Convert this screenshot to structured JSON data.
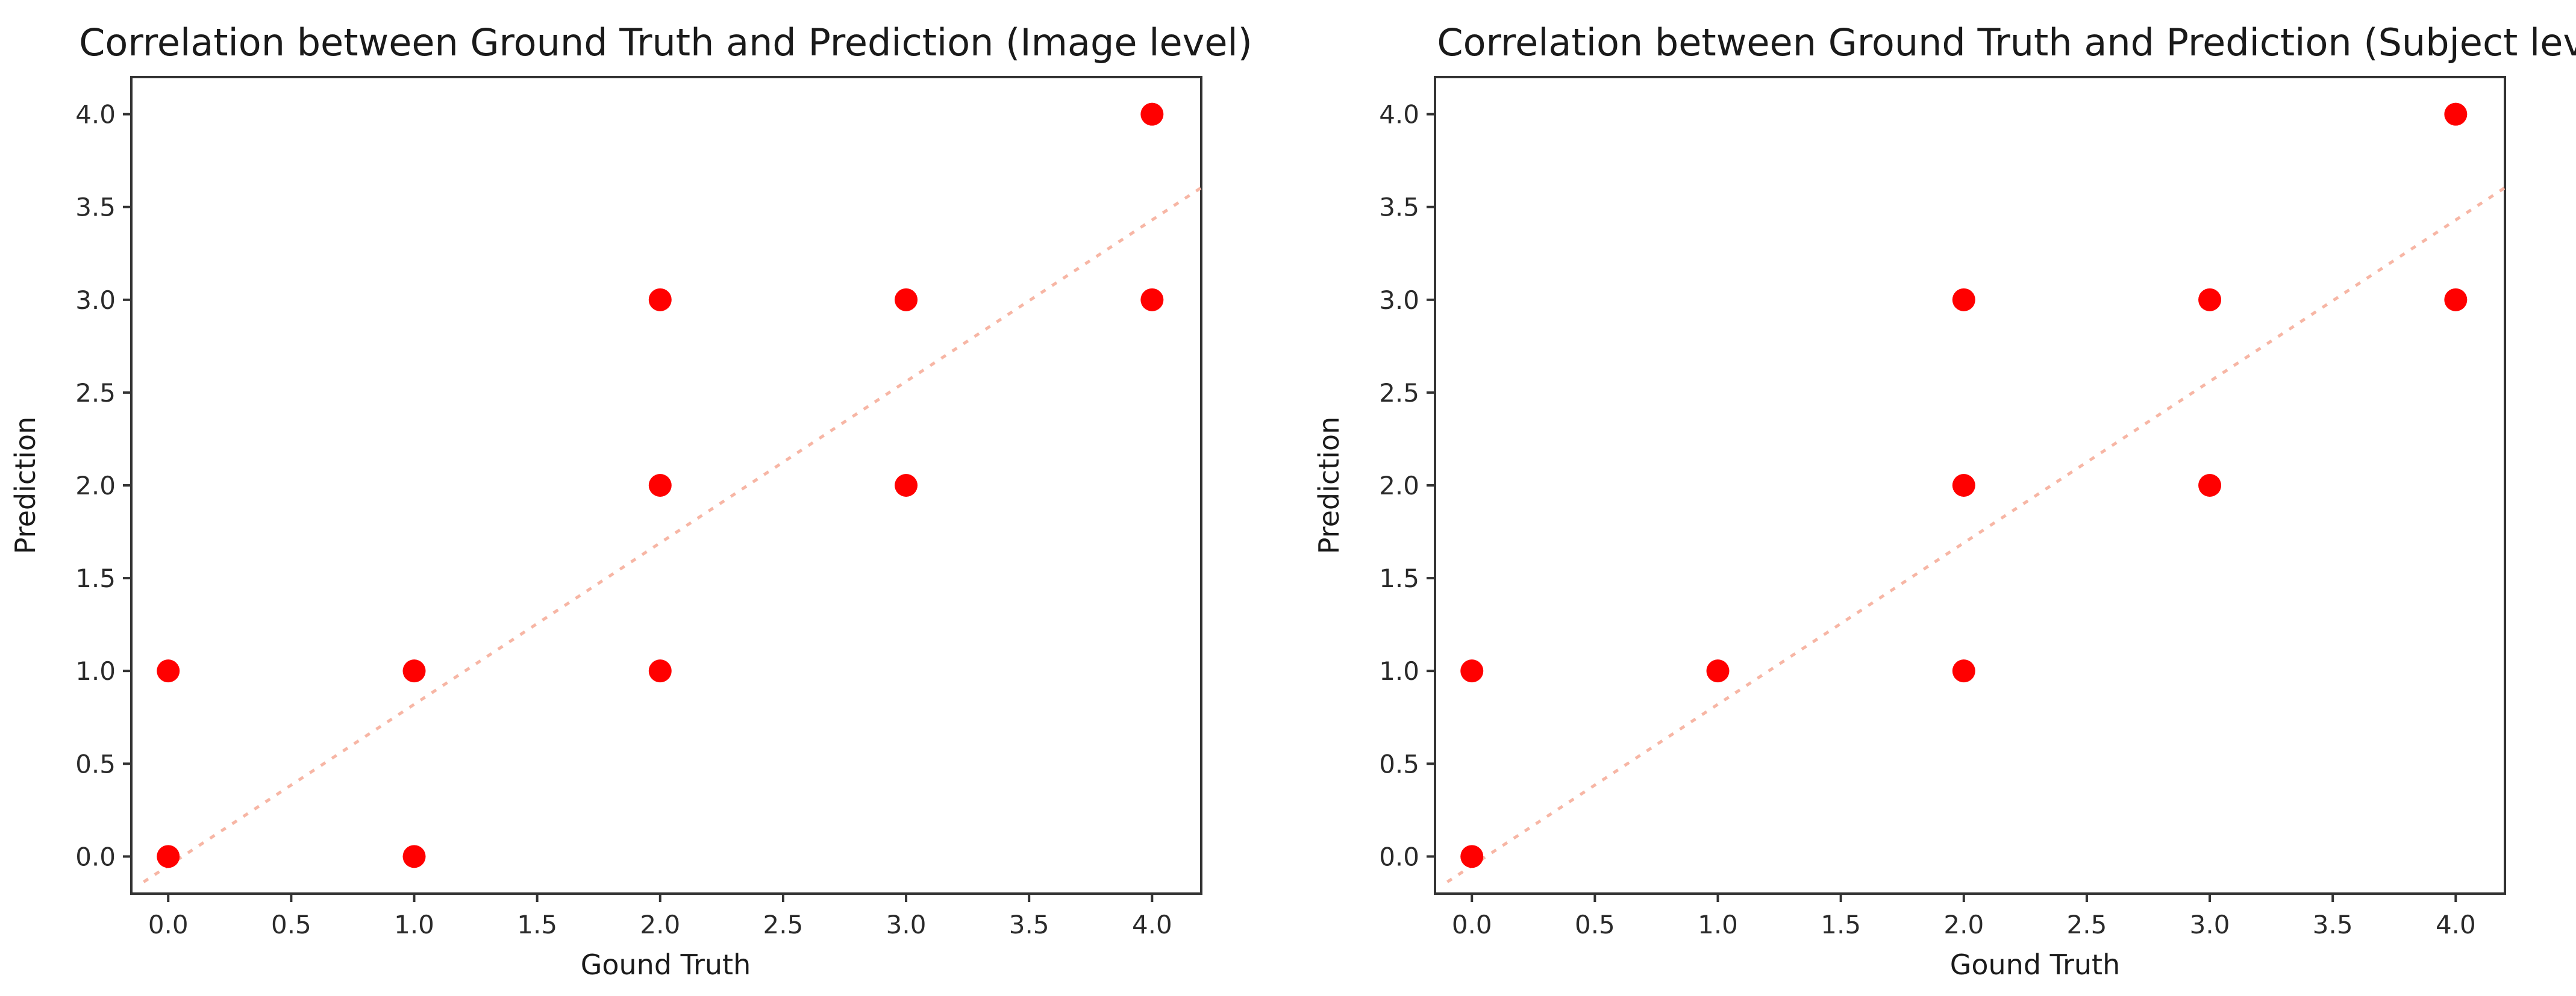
{
  "chart_data": [
    {
      "type": "scatter",
      "title": "Correlation between Ground Truth and Prediction (Image level)",
      "xlabel": "Gound Truth",
      "ylabel": "Prediction",
      "xlim": [
        -0.15,
        4.2
      ],
      "ylim": [
        -0.2,
        4.2
      ],
      "xticks": [
        "0.0",
        "0.5",
        "1.0",
        "1.5",
        "2.0",
        "2.5",
        "3.0",
        "3.5",
        "4.0"
      ],
      "yticks": [
        "0.0",
        "0.5",
        "1.0",
        "1.5",
        "2.0",
        "2.5",
        "3.0",
        "3.5",
        "4.0"
      ],
      "grid": false,
      "marker_color": "#ff0000",
      "trendline_color": "#f7b6a5",
      "trendline": {
        "slope": 0.87,
        "intercept": -0.05
      },
      "points": [
        {
          "x": 0,
          "y": 0
        },
        {
          "x": 0,
          "y": 1
        },
        {
          "x": 1,
          "y": 0
        },
        {
          "x": 1,
          "y": 1
        },
        {
          "x": 2,
          "y": 1
        },
        {
          "x": 2,
          "y": 2
        },
        {
          "x": 2,
          "y": 3
        },
        {
          "x": 3,
          "y": 2
        },
        {
          "x": 3,
          "y": 3
        },
        {
          "x": 4,
          "y": 3
        },
        {
          "x": 4,
          "y": 4
        }
      ]
    },
    {
      "type": "scatter",
      "title": "Correlation between Ground Truth and Prediction (Subject level)",
      "xlabel": "Gound Truth",
      "ylabel": "Prediction",
      "xlim": [
        -0.15,
        4.2
      ],
      "ylim": [
        -0.2,
        4.2
      ],
      "xticks": [
        "0.0",
        "0.5",
        "1.0",
        "1.5",
        "2.0",
        "2.5",
        "3.0",
        "3.5",
        "4.0"
      ],
      "yticks": [
        "0.0",
        "0.5",
        "1.0",
        "1.5",
        "2.0",
        "2.5",
        "3.0",
        "3.5",
        "4.0"
      ],
      "grid": false,
      "marker_color": "#ff0000",
      "trendline_color": "#f7b6a5",
      "trendline": {
        "slope": 0.87,
        "intercept": -0.05
      },
      "points": [
        {
          "x": 0,
          "y": 0
        },
        {
          "x": 0,
          "y": 1
        },
        {
          "x": 1,
          "y": 1
        },
        {
          "x": 2,
          "y": 1
        },
        {
          "x": 2,
          "y": 2
        },
        {
          "x": 2,
          "y": 3
        },
        {
          "x": 3,
          "y": 2
        },
        {
          "x": 3,
          "y": 3
        },
        {
          "x": 4,
          "y": 3
        },
        {
          "x": 4,
          "y": 4
        }
      ]
    }
  ]
}
